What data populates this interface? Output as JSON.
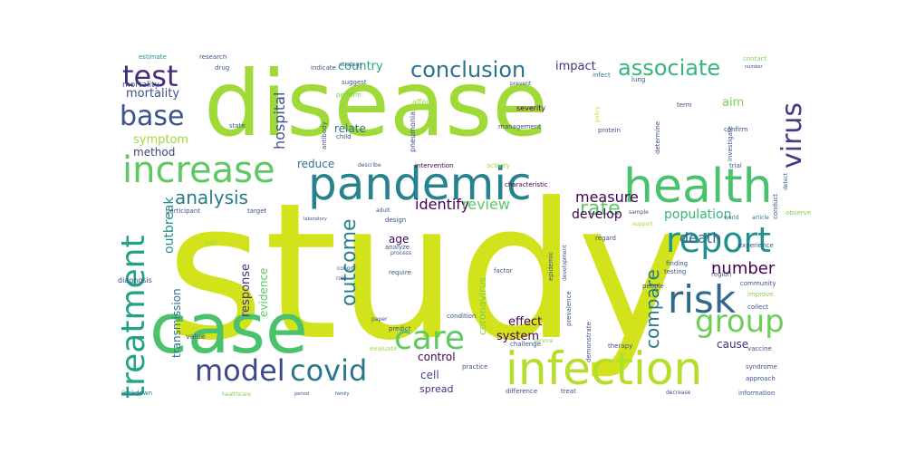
{
  "wordcloud": {
    "words": [
      {
        "text": "study",
        "color": "#d2e21b"
      },
      {
        "text": "disease",
        "color": "#a0da39"
      },
      {
        "text": "case",
        "color": "#4ac16d"
      },
      {
        "text": "pandemic",
        "color": "#26828e"
      },
      {
        "text": "health",
        "color": "#4ac16d"
      },
      {
        "text": "infection",
        "color": "#b5de2b"
      },
      {
        "text": "increase",
        "color": "#5ec962"
      },
      {
        "text": "test",
        "color": "#472d7b"
      },
      {
        "text": "base",
        "color": "#3b528b"
      },
      {
        "text": "conclusion",
        "color": "#2c728e"
      },
      {
        "text": "associate",
        "color": "#35b779"
      },
      {
        "text": "virus",
        "color": "#443983"
      },
      {
        "text": "risk",
        "color": "#31688e"
      },
      {
        "text": "group",
        "color": "#6ece58"
      },
      {
        "text": "report",
        "color": "#21918c"
      },
      {
        "text": "care",
        "color": "#5ec962"
      },
      {
        "text": "model",
        "color": "#3e4989"
      },
      {
        "text": "covid",
        "color": "#2a788e"
      },
      {
        "text": "treatment",
        "color": "#20a486"
      },
      {
        "text": "outcome",
        "color": "#26828e"
      },
      {
        "text": "analysis",
        "color": "#2a788e"
      },
      {
        "text": "rate",
        "color": "#5ec962"
      },
      {
        "text": "number",
        "color": "#440154"
      },
      {
        "text": "compare",
        "color": "#2a788e"
      },
      {
        "text": "death",
        "color": "#31688e"
      },
      {
        "text": "population",
        "color": "#35b779"
      },
      {
        "text": "measure",
        "color": "#440154"
      },
      {
        "text": "identify",
        "color": "#440154"
      },
      {
        "text": "review",
        "color": "#5ec962"
      },
      {
        "text": "develop",
        "color": "#440154"
      },
      {
        "text": "hospital",
        "color": "#3b528b"
      },
      {
        "text": "mortality",
        "color": "#3b528b"
      },
      {
        "text": "symptom",
        "color": "#a0da39"
      },
      {
        "text": "method",
        "color": "#404688"
      },
      {
        "text": "country",
        "color": "#20a486"
      },
      {
        "text": "impact",
        "color": "#46327e"
      },
      {
        "text": "aim",
        "color": "#7ad151"
      },
      {
        "text": "relate",
        "color": "#2c728e"
      },
      {
        "text": "reduce",
        "color": "#2c728e"
      },
      {
        "text": "outbreak",
        "color": "#21918c"
      },
      {
        "text": "response",
        "color": "#46327e"
      },
      {
        "text": "evidence",
        "color": "#5ec962"
      },
      {
        "text": "transmission",
        "color": "#2c728e"
      },
      {
        "text": "age",
        "color": "#440154"
      },
      {
        "text": "effect",
        "color": "#440154"
      },
      {
        "text": "system",
        "color": "#440154"
      },
      {
        "text": "control",
        "color": "#440154"
      },
      {
        "text": "cell",
        "color": "#3e4989"
      },
      {
        "text": "spread",
        "color": "#472d7b"
      },
      {
        "text": "cause",
        "color": "#472d7b"
      },
      {
        "text": "coronavirus",
        "color": "#7ad151"
      },
      {
        "text": "mortality",
        "color": "#3b528b"
      },
      {
        "text": "diagnosis",
        "color": "#404688"
      },
      {
        "text": "value",
        "color": "#3b528b"
      },
      {
        "text": "lockdown",
        "color": "#2c728e"
      },
      {
        "text": "estimate",
        "color": "#21918c"
      },
      {
        "text": "research",
        "color": "#3b528b"
      },
      {
        "text": "drug",
        "color": "#3b528b"
      },
      {
        "text": "indicate",
        "color": "#3b528b"
      },
      {
        "text": "suggest",
        "color": "#3b528b"
      },
      {
        "text": "perform",
        "color": "#7ad151"
      },
      {
        "text": "state",
        "color": "#3b528b"
      },
      {
        "text": "child",
        "color": "#3e4989"
      },
      {
        "text": "antibody",
        "color": "#3b528b"
      },
      {
        "text": "pneumonia",
        "color": "#3e4989"
      },
      {
        "text": "affect",
        "color": "#a0da39"
      },
      {
        "text": "severity",
        "color": "#440154"
      },
      {
        "text": "management",
        "color": "#3e4989"
      },
      {
        "text": "protein",
        "color": "#3b528b"
      },
      {
        "text": "lung",
        "color": "#3b528b"
      },
      {
        "text": "infect",
        "color": "#2c728e"
      },
      {
        "text": "prevent",
        "color": "#3b528b"
      },
      {
        "text": "strategy",
        "color": "#3b528b"
      },
      {
        "text": "policy",
        "color": "#d2e21b"
      },
      {
        "text": "term",
        "color": "#3b528b"
      },
      {
        "text": "confirm",
        "color": "#3b528b"
      },
      {
        "text": "determine",
        "color": "#3b528b"
      },
      {
        "text": "investigate",
        "color": "#3b528b"
      },
      {
        "text": "contact",
        "color": "#7ad151"
      },
      {
        "text": "number",
        "color": "#3b528b"
      },
      {
        "text": "trial",
        "color": "#3b528b"
      },
      {
        "text": "conduct",
        "color": "#3b528b"
      },
      {
        "text": "detect",
        "color": "#3b528b"
      },
      {
        "text": "observe",
        "color": "#7ad151"
      },
      {
        "text": "world",
        "color": "#2c728e"
      },
      {
        "text": "article",
        "color": "#2c728e"
      },
      {
        "text": "support",
        "color": "#a0da39"
      },
      {
        "text": "sample",
        "color": "#3b528b"
      },
      {
        "text": "characteristic",
        "color": "#440154"
      },
      {
        "text": "activity",
        "color": "#a0da39"
      },
      {
        "text": "intervention",
        "color": "#440154"
      },
      {
        "text": "describe",
        "color": "#3b528b"
      },
      {
        "text": "participant",
        "color": "#3b528b"
      },
      {
        "text": "target",
        "color": "#3b528b"
      },
      {
        "text": "adult",
        "color": "#3b528b"
      },
      {
        "text": "design",
        "color": "#3b528b"
      },
      {
        "text": "laboratory",
        "color": "#3b528b"
      },
      {
        "text": "analyze",
        "color": "#3b528b"
      },
      {
        "text": "lead",
        "color": "#a0da39"
      },
      {
        "text": "regard",
        "color": "#3b528b"
      },
      {
        "text": "experience",
        "color": "#3b528b"
      },
      {
        "text": "finding",
        "color": "#3b528b"
      },
      {
        "text": "testing",
        "color": "#3b528b"
      },
      {
        "text": "region",
        "color": "#3b528b"
      },
      {
        "text": "community",
        "color": "#3b528b"
      },
      {
        "text": "improve",
        "color": "#7ad151"
      },
      {
        "text": "collect",
        "color": "#3b528b"
      },
      {
        "text": "process",
        "color": "#3b528b"
      },
      {
        "text": "require",
        "color": "#3b528b"
      },
      {
        "text": "factor",
        "color": "#3b528b"
      },
      {
        "text": "epidemic",
        "color": "#3b528b"
      },
      {
        "text": "development",
        "color": "#3b528b"
      },
      {
        "text": "people",
        "color": "#3b528b"
      },
      {
        "text": "cohort",
        "color": "#3b528b"
      },
      {
        "text": "role",
        "color": "#3b528b"
      },
      {
        "text": "paper",
        "color": "#3b528b"
      },
      {
        "text": "predict",
        "color": "#3b528b"
      },
      {
        "text": "condition",
        "color": "#3b528b"
      },
      {
        "text": "prevalence",
        "color": "#3b528b"
      },
      {
        "text": "demonstrate",
        "color": "#3b528b"
      },
      {
        "text": "challenge",
        "color": "#3b528b"
      },
      {
        "text": "service",
        "color": "#7ad151"
      },
      {
        "text": "therapy",
        "color": "#3b528b"
      },
      {
        "text": "vaccine",
        "color": "#3b528b"
      },
      {
        "text": "syndrome",
        "color": "#3b528b"
      },
      {
        "text": "approach",
        "color": "#3b528b"
      },
      {
        "text": "evaluate",
        "color": "#a0da39"
      },
      {
        "text": "practice",
        "color": "#3b528b"
      },
      {
        "text": "difference",
        "color": "#3b528b"
      },
      {
        "text": "treat",
        "color": "#3b528b"
      },
      {
        "text": "decrease",
        "color": "#3b528b"
      },
      {
        "text": "information",
        "color": "#3b528b"
      },
      {
        "text": "healthcare",
        "color": "#7ad151"
      },
      {
        "text": "period",
        "color": "#3b528b"
      },
      {
        "text": "family",
        "color": "#3b528b"
      }
    ]
  }
}
